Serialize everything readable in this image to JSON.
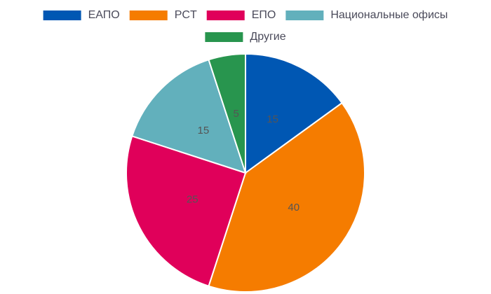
{
  "chart_data": {
    "type": "pie",
    "categories": [
      "ЕАПО",
      "PCT",
      "ЕПО",
      "Национальные офисы",
      "Другие"
    ],
    "values": [
      15,
      40,
      25,
      15,
      5
    ],
    "colors": [
      "#0057b3",
      "#f57c00",
      "#e0005a",
      "#62b0bc",
      "#28954e"
    ]
  }
}
